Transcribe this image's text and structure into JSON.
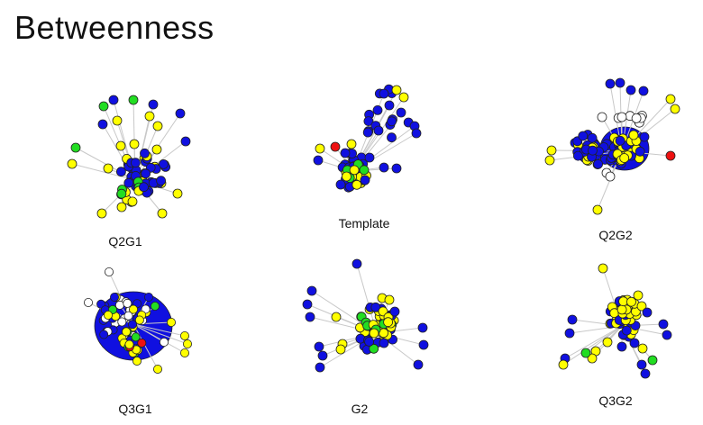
{
  "title": "Betweenness",
  "colors": {
    "blue": "#1010e0",
    "yellow": "#ffff00",
    "green": "#22dd22",
    "red": "#ee1111",
    "white": "#ffffff",
    "edge": "#c8c8c8",
    "stroke": "#222222"
  },
  "graphs": [
    {
      "id": "q2g1",
      "label": "Q2G1"
    },
    {
      "id": "template",
      "label": "Template"
    },
    {
      "id": "q2g2",
      "label": "Q2G2"
    },
    {
      "id": "q3g1",
      "label": "Q3G1"
    },
    {
      "id": "g2",
      "label": "G2"
    },
    {
      "id": "q3g2",
      "label": "Q3G2"
    }
  ]
}
